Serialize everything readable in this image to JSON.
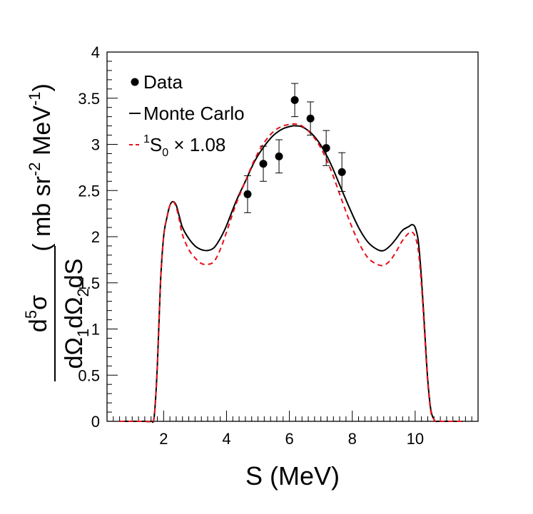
{
  "chart_data": {
    "type": "line",
    "title": "",
    "xlabel": "S (MeV)",
    "ylabel": {
      "numerator": "d5σ",
      "denominator": "dΩ1dΩ2dS",
      "units": "( mb sr-2 MeV-1 )"
    },
    "xlim": [
      0.2,
      12.0
    ],
    "ylim": [
      0,
      4
    ],
    "xticks": [
      2,
      4,
      6,
      8,
      10
    ],
    "yticks": [
      0,
      0.5,
      1,
      1.5,
      2,
      2.5,
      3,
      3.5,
      4
    ],
    "legend": {
      "placement": "top-left",
      "entries": [
        {
          "label": "Data",
          "style": "marker",
          "color": "#000000"
        },
        {
          "label": "Monte Carlo",
          "style": "solid",
          "color": "#000000"
        },
        {
          "label": "1S0 × 1.08",
          "style": "dashed",
          "color": "#e8101a"
        }
      ]
    },
    "series": [
      {
        "name": "Data",
        "style": "points",
        "color": "#000000",
        "points": [
          {
            "x": 4.67,
            "y": 2.46,
            "err": 0.2
          },
          {
            "x": 5.17,
            "y": 2.79,
            "err": 0.19
          },
          {
            "x": 5.67,
            "y": 2.87,
            "err": 0.18
          },
          {
            "x": 6.17,
            "y": 3.48,
            "err": 0.18
          },
          {
            "x": 6.67,
            "y": 3.28,
            "err": 0.18
          },
          {
            "x": 7.17,
            "y": 2.96,
            "err": 0.19
          },
          {
            "x": 7.67,
            "y": 2.7,
            "err": 0.21
          }
        ]
      },
      {
        "name": "Monte Carlo",
        "style": "solid",
        "color": "#000000",
        "x": [
          0.6,
          1.0,
          1.4,
          1.6,
          1.7,
          1.8,
          1.9,
          2.0,
          2.1,
          2.2,
          2.3,
          2.4,
          2.5,
          2.6,
          2.8,
          3.0,
          3.2,
          3.4,
          3.6,
          3.8,
          4.0,
          4.3,
          4.6,
          4.9,
          5.2,
          5.5,
          5.8,
          6.1,
          6.2,
          6.4,
          6.7,
          7.0,
          7.3,
          7.6,
          7.9,
          8.2,
          8.5,
          8.8,
          9.0,
          9.2,
          9.4,
          9.6,
          9.8,
          9.9,
          10.0,
          10.1,
          10.2,
          10.3,
          10.4,
          10.5,
          10.6,
          10.65,
          10.7,
          11.0,
          11.5
        ],
        "y": [
          0,
          0,
          0,
          0,
          0.05,
          0.6,
          1.5,
          2.0,
          2.2,
          2.34,
          2.38,
          2.34,
          2.22,
          2.1,
          1.98,
          1.9,
          1.86,
          1.85,
          1.88,
          1.98,
          2.12,
          2.38,
          2.6,
          2.82,
          2.98,
          3.1,
          3.17,
          3.2,
          3.2,
          3.19,
          3.12,
          2.99,
          2.8,
          2.56,
          2.32,
          2.1,
          1.94,
          1.86,
          1.85,
          1.9,
          1.98,
          2.07,
          2.11,
          2.13,
          2.1,
          1.95,
          1.55,
          1.0,
          0.45,
          0.12,
          0.02,
          0,
          0,
          0,
          0
        ]
      },
      {
        "name": "1S0 × 1.08",
        "style": "dashed",
        "color": "#e8101a",
        "x": [
          0.6,
          1.0,
          1.4,
          1.6,
          1.7,
          1.8,
          1.9,
          2.0,
          2.1,
          2.2,
          2.3,
          2.4,
          2.5,
          2.6,
          2.8,
          3.0,
          3.2,
          3.4,
          3.6,
          3.8,
          4.0,
          4.3,
          4.6,
          4.9,
          5.2,
          5.5,
          5.8,
          6.1,
          6.2,
          6.4,
          6.7,
          7.0,
          7.3,
          7.6,
          7.9,
          8.2,
          8.5,
          8.8,
          9.0,
          9.2,
          9.4,
          9.6,
          9.8,
          9.9,
          10.0,
          10.1,
          10.2,
          10.3,
          10.4,
          10.5,
          10.6,
          10.65,
          10.7,
          11.0,
          11.5
        ],
        "y": [
          0,
          0,
          0,
          0,
          0.05,
          0.6,
          1.5,
          2.0,
          2.2,
          2.34,
          2.38,
          2.32,
          2.18,
          2.02,
          1.86,
          1.77,
          1.71,
          1.7,
          1.73,
          1.86,
          2.05,
          2.35,
          2.6,
          2.84,
          3.02,
          3.14,
          3.2,
          3.22,
          3.22,
          3.2,
          3.11,
          2.96,
          2.74,
          2.46,
          2.18,
          1.94,
          1.77,
          1.7,
          1.69,
          1.74,
          1.84,
          1.96,
          2.04,
          2.05,
          2.0,
          1.85,
          1.48,
          0.95,
          0.42,
          0.1,
          0.02,
          0,
          0,
          0,
          0
        ]
      }
    ]
  }
}
